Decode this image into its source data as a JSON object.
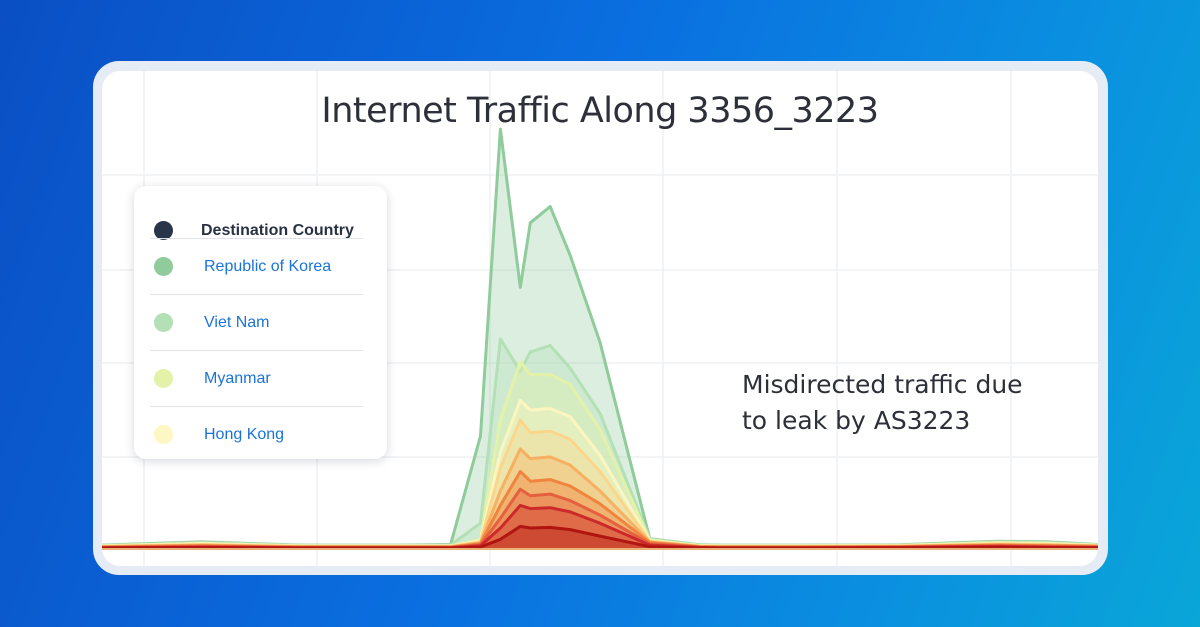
{
  "chart_data": {
    "type": "area",
    "title": "Internet Traffic Along 3356_3223",
    "annotation": [
      "Misdirected traffic due",
      "to leak by AS3223"
    ],
    "legend": {
      "header": "Destination Country",
      "header_color": "#27344a",
      "items": [
        {
          "label": "Republic of Korea",
          "color": "#8fcb9b"
        },
        {
          "label": "Viet Nam",
          "color": "#b3e0b4"
        },
        {
          "label": "Myanmar",
          "color": "#e3f2a8"
        },
        {
          "label": "Hong Kong",
          "color": "#fdf7c4"
        }
      ]
    },
    "grid": true,
    "ylim": [
      0,
      100
    ],
    "x": [
      0,
      10,
      20,
      30,
      35,
      38,
      40,
      42,
      43,
      45,
      47,
      50,
      55,
      60,
      62,
      70,
      80,
      90,
      95,
      100
    ],
    "series": [
      {
        "color": "#b0150f",
        "values": [
          0.3,
          0.4,
          0.3,
          0.3,
          0.3,
          0.6,
          3.0,
          7.0,
          6.5,
          6.7,
          6.0,
          4.0,
          0.7,
          0.3,
          0.3,
          0.3,
          0.3,
          0.5,
          0.4,
          0.3
        ]
      },
      {
        "color": "#cc2a2a",
        "values": [
          0.4,
          0.6,
          0.4,
          0.4,
          0.4,
          1.0,
          6.5,
          13.5,
          12.5,
          12.8,
          11.5,
          8.0,
          1.2,
          0.5,
          0.4,
          0.4,
          0.5,
          0.8,
          0.6,
          0.5
        ]
      },
      {
        "color": "#e4603f",
        "values": [
          0.5,
          0.8,
          0.5,
          0.5,
          0.5,
          1.3,
          9.5,
          18.5,
          16.5,
          17.0,
          15.0,
          10.5,
          1.6,
          0.6,
          0.5,
          0.5,
          0.6,
          1.0,
          0.8,
          0.6
        ]
      },
      {
        "color": "#f0843f",
        "values": [
          0.6,
          1.0,
          0.6,
          0.6,
          0.6,
          1.6,
          13.5,
          24.0,
          21.0,
          21.5,
          19.5,
          14.0,
          2.0,
          0.7,
          0.6,
          0.6,
          0.7,
          1.2,
          1.0,
          0.8
        ]
      },
      {
        "color": "#f7b062",
        "values": [
          0.7,
          1.2,
          0.7,
          0.7,
          0.7,
          1.9,
          18.0,
          31.0,
          28.0,
          28.5,
          26.0,
          18.0,
          2.2,
          0.8,
          0.7,
          0.7,
          0.8,
          1.4,
          1.2,
          0.9
        ]
      },
      {
        "color": "#fbd68a",
        "values": [
          0.8,
          1.4,
          0.8,
          0.8,
          0.8,
          2.2,
          25.0,
          40.0,
          36.0,
          36.5,
          34.0,
          24.0,
          2.4,
          0.9,
          0.8,
          0.8,
          0.9,
          1.6,
          1.4,
          1.0
        ]
      },
      {
        "color": "#fdf5bf",
        "values": [
          0.9,
          1.6,
          0.9,
          0.9,
          0.9,
          2.5,
          30.0,
          46.0,
          43.0,
          43.5,
          41.0,
          29.0,
          2.6,
          1.0,
          0.9,
          0.9,
          1.0,
          1.8,
          1.6,
          1.1
        ]
      },
      {
        "color": "#e3f2a8",
        "values": [
          1.0,
          1.8,
          1.0,
          1.0,
          1.0,
          3.0,
          40.0,
          58.0,
          54.0,
          54.0,
          51.0,
          37.0,
          2.8,
          1.1,
          1.0,
          1.0,
          1.1,
          2.0,
          1.8,
          1.2
        ]
      },
      {
        "color": "#b3e0b4",
        "values": [
          1.1,
          2.0,
          1.1,
          1.1,
          1.2,
          8.0,
          65.0,
          55.0,
          61.0,
          63.0,
          56.0,
          42.0,
          3.0,
          1.2,
          1.1,
          1.1,
          1.2,
          2.2,
          2.0,
          1.3
        ]
      },
      {
        "color": "#8fcb9b",
        "values": [
          1.2,
          2.2,
          1.2,
          1.2,
          1.4,
          35.0,
          130.0,
          81.0,
          101.0,
          106.0,
          91.0,
          64.0,
          3.2,
          1.3,
          1.2,
          1.2,
          1.3,
          2.4,
          2.2,
          1.4
        ]
      }
    ]
  }
}
